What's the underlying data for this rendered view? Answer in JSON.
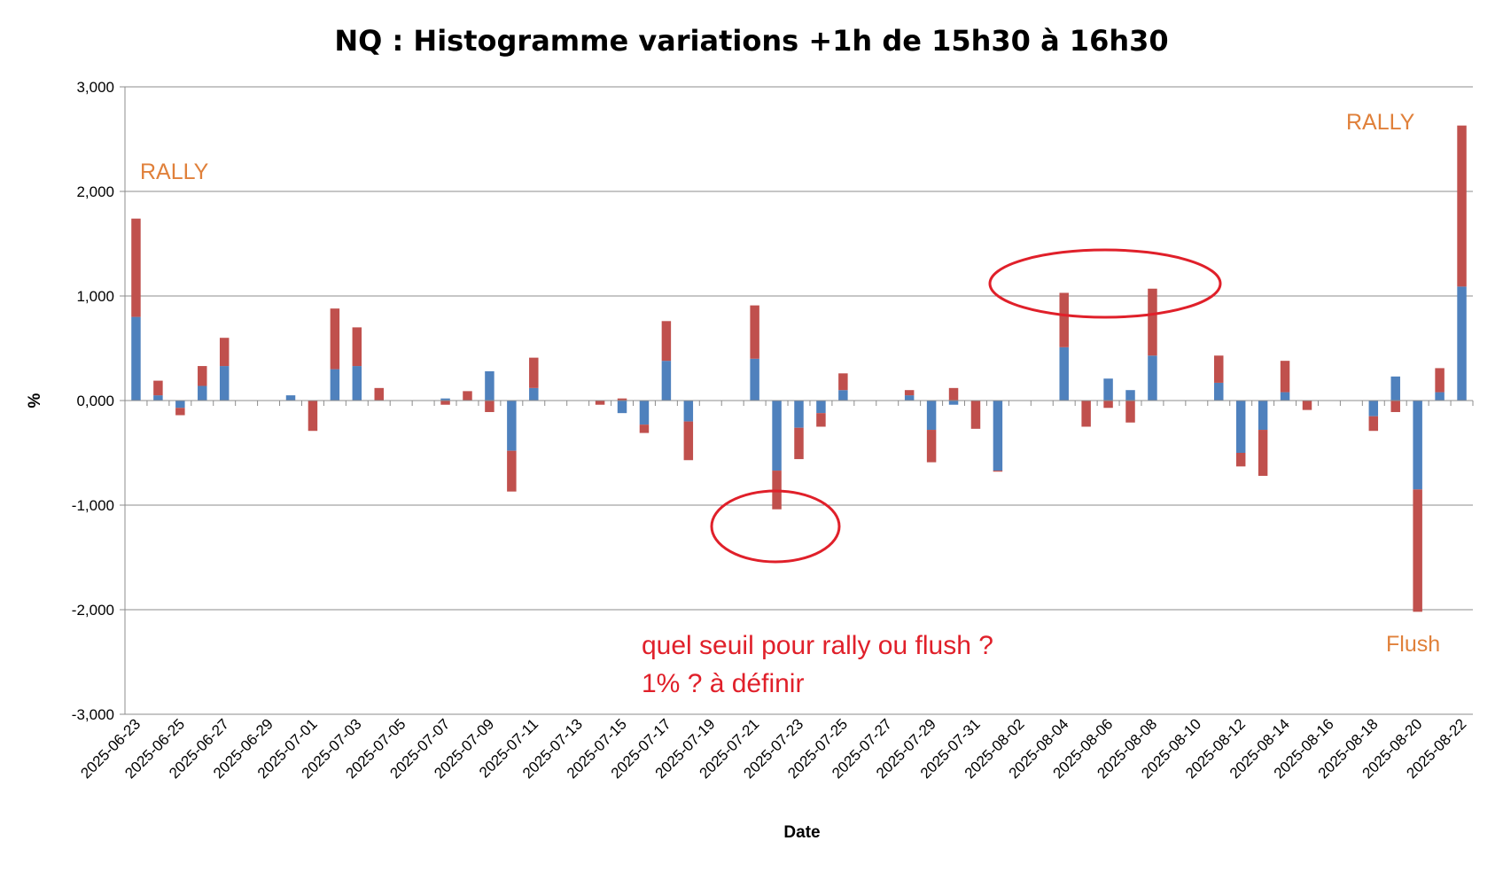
{
  "chart_data": {
    "type": "bar",
    "stacked": true,
    "title": "NQ : Histogramme variations +1h de 15h30 à 16h30",
    "xlabel": "Date",
    "ylabel": "%",
    "ylim": [
      -3,
      3
    ],
    "yticks": [
      3,
      2,
      1,
      0,
      -1,
      -2,
      -3
    ],
    "ytick_labels": [
      "3,000",
      "2,000",
      "1,000",
      "0,000",
      "-1,000",
      "-2,000",
      "-3,000"
    ],
    "grid": true,
    "legend": "none",
    "series_colors": [
      "#4f81bd",
      "#c0504d"
    ],
    "categories": [
      "2025-06-23",
      "2025-06-24",
      "2025-06-25",
      "2025-06-26",
      "2025-06-27",
      "2025-06-28",
      "2025-06-29",
      "2025-06-30",
      "2025-07-01",
      "2025-07-02",
      "2025-07-03",
      "2025-07-04",
      "2025-07-05",
      "2025-07-06",
      "2025-07-07",
      "2025-07-08",
      "2025-07-09",
      "2025-07-10",
      "2025-07-11",
      "2025-07-12",
      "2025-07-13",
      "2025-07-14",
      "2025-07-15",
      "2025-07-16",
      "2025-07-17",
      "2025-07-18",
      "2025-07-19",
      "2025-07-20",
      "2025-07-21",
      "2025-07-22",
      "2025-07-23",
      "2025-07-24",
      "2025-07-25",
      "2025-07-26",
      "2025-07-27",
      "2025-07-28",
      "2025-07-29",
      "2025-07-30",
      "2025-07-31",
      "2025-08-01",
      "2025-08-02",
      "2025-08-03",
      "2025-08-04",
      "2025-08-05",
      "2025-08-06",
      "2025-08-07",
      "2025-08-08",
      "2025-08-09",
      "2025-08-10",
      "2025-08-11",
      "2025-08-12",
      "2025-08-13",
      "2025-08-14",
      "2025-08-15",
      "2025-08-16",
      "2025-08-17",
      "2025-08-18",
      "2025-08-19",
      "2025-08-20",
      "2025-08-21",
      "2025-08-22"
    ],
    "x_tick_labels": [
      "2025-06-23",
      "2025-06-25",
      "2025-06-27",
      "2025-06-29",
      "2025-07-01",
      "2025-07-03",
      "2025-07-05",
      "2025-07-07",
      "2025-07-09",
      "2025-07-11",
      "2025-07-13",
      "2025-07-15",
      "2025-07-17",
      "2025-07-19",
      "2025-07-21",
      "2025-07-23",
      "2025-07-25",
      "2025-07-27",
      "2025-07-29",
      "2025-07-31",
      "2025-08-02",
      "2025-08-04",
      "2025-08-06",
      "2025-08-08",
      "2025-08-10",
      "2025-08-12",
      "2025-08-14",
      "2025-08-16",
      "2025-08-18",
      "2025-08-20",
      "2025-08-22"
    ],
    "series": [
      {
        "values": [
          0.8,
          0.05,
          -0.07,
          0.14,
          0.33,
          null,
          null,
          0.05,
          0.0,
          0.3,
          0.33,
          0.0,
          null,
          null,
          0.02,
          0.0,
          0.28,
          -0.48,
          0.12,
          null,
          null,
          0.0,
          -0.12,
          -0.23,
          0.38,
          -0.2,
          null,
          null,
          0.4,
          -0.67,
          -0.26,
          -0.12,
          0.1,
          null,
          null,
          0.05,
          -0.28,
          -0.04,
          0.0,
          -0.67,
          null,
          null,
          0.51,
          0.0,
          0.21,
          0.1,
          0.43,
          null,
          null,
          0.17,
          -0.5,
          -0.28,
          0.08,
          0.0,
          null,
          null,
          -0.15,
          0.23,
          -0.85,
          0.08,
          1.09
        ]
      },
      {
        "values": [
          0.94,
          0.14,
          -0.07,
          0.19,
          0.27,
          null,
          null,
          0.0,
          -0.29,
          0.58,
          0.37,
          0.12,
          null,
          null,
          -0.04,
          0.09,
          -0.11,
          -0.39,
          0.29,
          null,
          null,
          -0.04,
          0.02,
          -0.08,
          0.38,
          -0.37,
          null,
          null,
          0.51,
          -0.37,
          -0.3,
          -0.13,
          0.16,
          null,
          null,
          0.05,
          -0.31,
          0.12,
          -0.27,
          -0.01,
          null,
          null,
          0.52,
          -0.25,
          -0.07,
          -0.21,
          0.64,
          null,
          null,
          0.26,
          -0.13,
          -0.44,
          0.3,
          -0.09,
          null,
          null,
          -0.14,
          -0.11,
          -1.17,
          0.23,
          1.54
        ]
      }
    ],
    "annotations": [
      {
        "text": "RALLY",
        "color": "#e0803a"
      },
      {
        "text": "RALLY",
        "color": "#e0803a"
      },
      {
        "text": "Flush",
        "color": "#e0803a"
      },
      {
        "text": "quel seuil pour rally ou flush ?",
        "color": "#e0202a"
      },
      {
        "text": "1% ? à définir",
        "color": "#e0202a"
      }
    ],
    "highlight_shapes": [
      {
        "shape": "ellipse",
        "color": "#e0202a"
      },
      {
        "shape": "ellipse",
        "color": "#e0202a"
      }
    ]
  }
}
